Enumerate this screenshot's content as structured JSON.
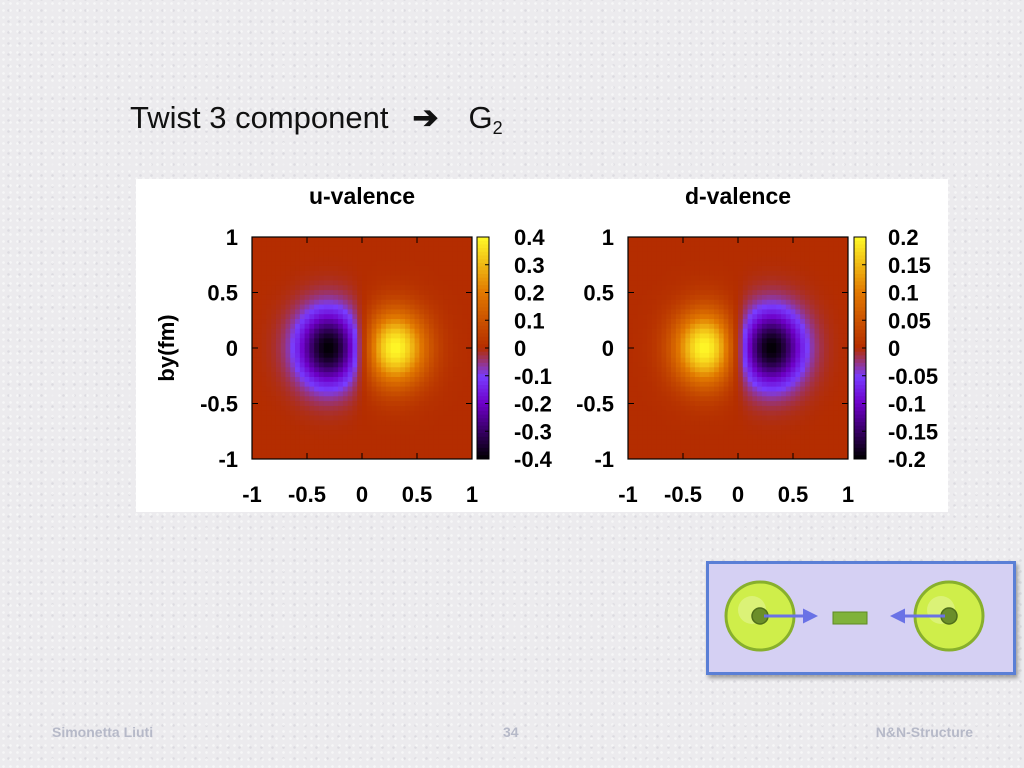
{
  "slide": {
    "title_text": "Twist 3 component",
    "title_arrow": "➔",
    "title_symbol": "G",
    "title_subscript": "2"
  },
  "footer": {
    "author": "Simonetta Liuti",
    "page": "34",
    "project": "N&N-Structure"
  },
  "diagram": {
    "ball_color": "#cfee4a",
    "arrow_color": "#6a72e6",
    "bar_color": "#7fb23a"
  },
  "chart_data": [
    {
      "type": "heatmap",
      "title": "u-valence",
      "ylabel": "by(fm)",
      "xlabel": "",
      "xlim": [
        -1,
        1
      ],
      "ylim": [
        -1,
        1
      ],
      "x_ticks": [
        "-1",
        "-0.5",
        "0",
        "0.5",
        "1"
      ],
      "y_ticks": [
        "1",
        "0.5",
        "0",
        "-0.5",
        "-1"
      ],
      "colorbar_range": [
        -0.4,
        0.4
      ],
      "colorbar_ticks": [
        "0.4",
        "0.3",
        "0.2",
        "0.1",
        "0",
        "-0.1",
        "-0.2",
        "-0.3",
        "-0.4"
      ],
      "extrema": [
        {
          "x": -0.3,
          "y": 0,
          "value": -0.4
        },
        {
          "x": 0.3,
          "y": 0,
          "value": 0.4
        }
      ]
    },
    {
      "type": "heatmap",
      "title": "d-valence",
      "ylabel": "",
      "xlabel": "",
      "xlim": [
        -1,
        1
      ],
      "ylim": [
        -1,
        1
      ],
      "x_ticks": [
        "-1",
        "-0.5",
        "0",
        "0.5",
        "1"
      ],
      "y_ticks": [
        "1",
        "0.5",
        "0",
        "-0.5",
        "-1"
      ],
      "colorbar_range": [
        -0.2,
        0.2
      ],
      "colorbar_ticks": [
        "0.2",
        "0.15",
        "0.1",
        "0.05",
        "0",
        "-0.05",
        "-0.1",
        "-0.15",
        "-0.2"
      ],
      "extrema": [
        {
          "x": -0.3,
          "y": 0,
          "value": 0.2
        },
        {
          "x": 0.3,
          "y": 0,
          "value": -0.2
        }
      ]
    }
  ]
}
